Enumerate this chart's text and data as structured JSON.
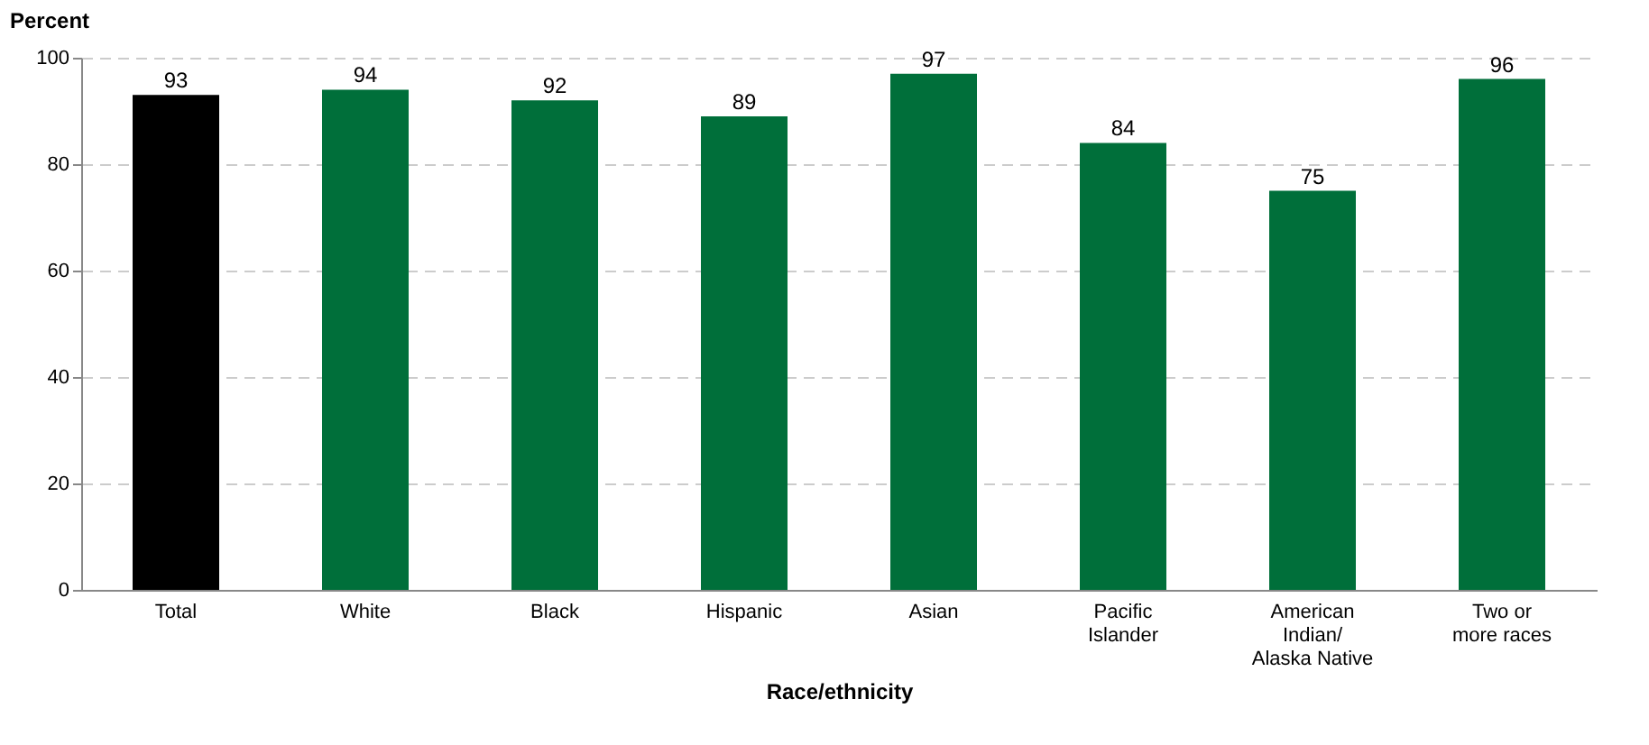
{
  "chart_data": {
    "type": "bar",
    "ylabel": "Percent",
    "xlabel": "Race/ethnicity",
    "categories": [
      "Total",
      "White",
      "Black",
      "Hispanic",
      "Asian",
      "Pacific\nIslander",
      "American\nIndian/\nAlaska Native",
      "Two or\nmore races"
    ],
    "values": [
      93,
      94,
      92,
      89,
      97,
      84,
      75,
      96
    ],
    "colors": [
      "#000000",
      "#006f3a",
      "#006f3a",
      "#006f3a",
      "#006f3a",
      "#006f3a",
      "#006f3a",
      "#006f3a"
    ],
    "ylim": [
      0,
      100
    ],
    "yticks": [
      0,
      20,
      40,
      60,
      80,
      100
    ],
    "grid": "y",
    "data_labels": true
  }
}
